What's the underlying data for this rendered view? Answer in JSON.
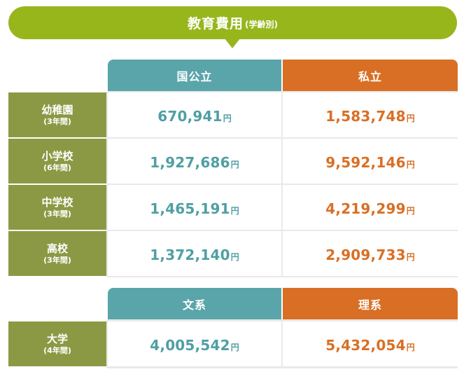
{
  "title": {
    "main": "教育費用",
    "sub": "(学齢別)"
  },
  "school_table": {
    "columns": [
      {
        "label": "国公立",
        "color": "#5aa5a9"
      },
      {
        "label": "私立",
        "color": "#d96f25"
      }
    ],
    "rows": [
      {
        "name": "幼稚園",
        "period": "(3年間)",
        "public": "670,941",
        "private": "1,583,748"
      },
      {
        "name": "小学校",
        "period": "(6年間)",
        "public": "1,927,686",
        "private": "9,592,146"
      },
      {
        "name": "中学校",
        "period": "(3年間)",
        "public": "1,465,191",
        "private": "4,219,299"
      },
      {
        "name": "高校",
        "period": "(3年間)",
        "public": "1,372,140",
        "private": "2,909,733"
      }
    ]
  },
  "university_table": {
    "columns": [
      {
        "label": "文系",
        "color": "#5aa5a9"
      },
      {
        "label": "理系",
        "color": "#d96f25"
      }
    ],
    "rows": [
      {
        "name": "大学",
        "period": "(4年間)",
        "humanities": "4,005,542",
        "sciences": "5,432,054"
      }
    ]
  },
  "unit": "円",
  "colors": {
    "banner": "#97b61c",
    "row_header": "#8c9944",
    "teal": "#5aa5a9",
    "orange": "#d96f25"
  }
}
